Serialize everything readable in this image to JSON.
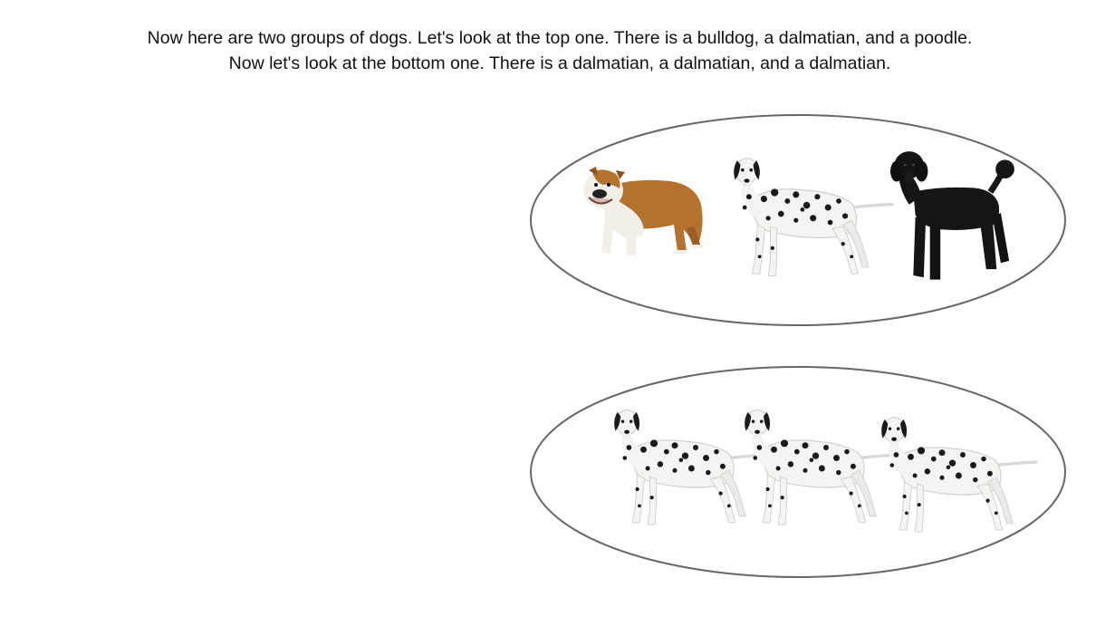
{
  "caption": {
    "line1": "Now here are two groups of dogs. Let's look at the top one. There is a bulldog, a dalmatian, and a poodle.",
    "line2": "Now let's look at the bottom one. There is a dalmatian, a dalmatian, and a dalmatian."
  },
  "groups": {
    "top": {
      "dogs": [
        "bulldog",
        "dalmatian",
        "poodle"
      ]
    },
    "bottom": {
      "dogs": [
        "dalmatian",
        "dalmatian",
        "dalmatian"
      ]
    }
  },
  "colors": {
    "text": "#111111",
    "ellipse_stroke": "#666666",
    "bulldog_coat": "#b5722f",
    "dalmatian_coat": "#f4f4f2",
    "spots": "#1a1a1a",
    "poodle_coat": "#151515"
  }
}
